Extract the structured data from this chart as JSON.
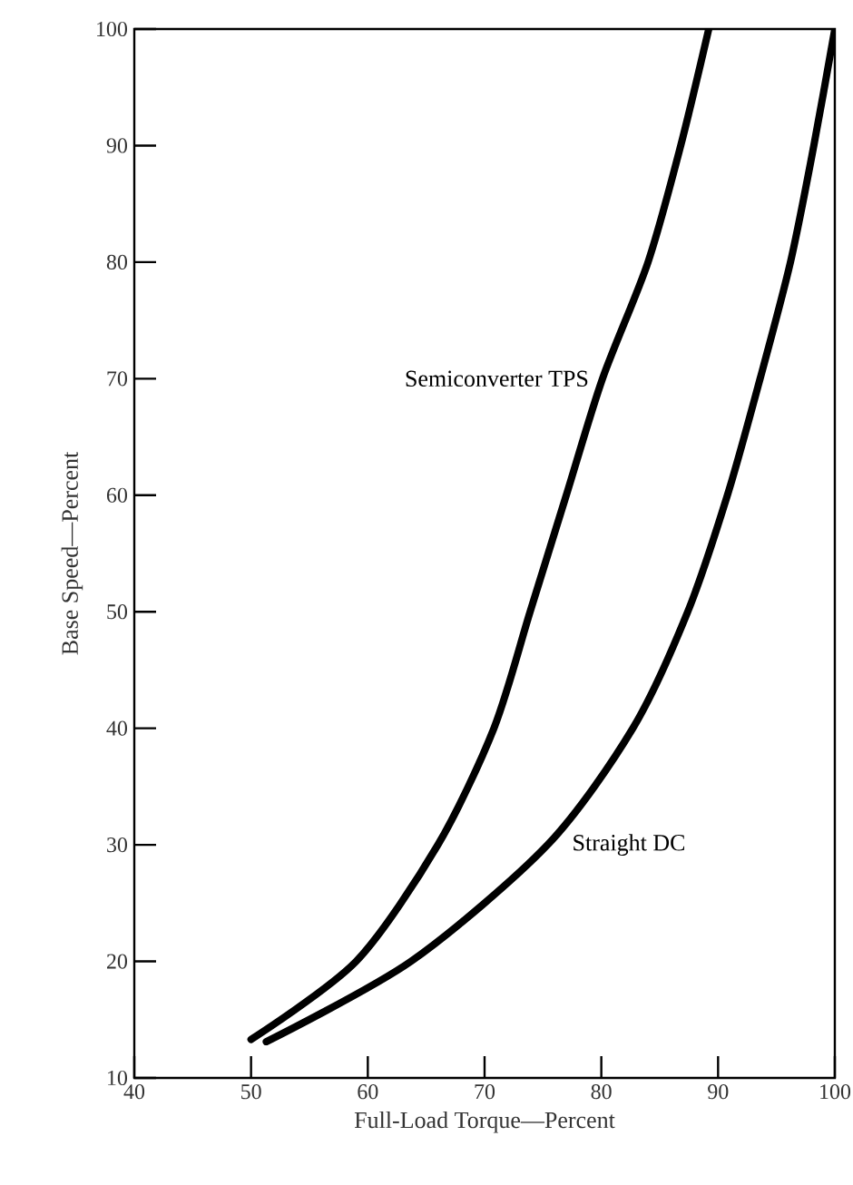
{
  "chart_data": {
    "type": "line",
    "xlabel": "Full-Load Torque—Percent",
    "ylabel": "Base Speed—Percent",
    "xlim": [
      40,
      100
    ],
    "ylim": [
      10,
      100
    ],
    "xticks": [
      40,
      50,
      60,
      70,
      80,
      90,
      100
    ],
    "yticks": [
      10,
      20,
      30,
      40,
      50,
      60,
      70,
      80,
      90,
      100
    ],
    "grid": false,
    "legend": false,
    "marker": "none",
    "line_style": "solid",
    "series": [
      {
        "name": "Semiconverter TPS",
        "color": "#000000",
        "x": [
          50,
          59.0,
          66.0,
          70.8,
          73.9,
          77.0,
          80.1,
          84.0,
          86.8,
          89.2
        ],
        "values": [
          13.3,
          20,
          30,
          40,
          50,
          60,
          70,
          80,
          90,
          100
        ]
      },
      {
        "name": "Straight DC",
        "color": "#000000",
        "x": [
          51.3,
          63.7,
          75.4,
          82.7,
          87.4,
          90.8,
          93.6,
          96.2,
          98.2,
          100
        ],
        "values": [
          13.1,
          20,
          30,
          40,
          50,
          60,
          70,
          80,
          90,
          100
        ]
      }
    ]
  }
}
